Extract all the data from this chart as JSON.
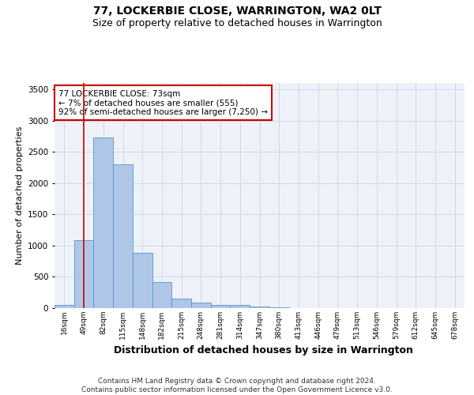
{
  "title": "77, LOCKERBIE CLOSE, WARRINGTON, WA2 0LT",
  "subtitle": "Size of property relative to detached houses in Warrington",
  "xlabel": "Distribution of detached houses by size in Warrington",
  "ylabel": "Number of detached properties",
  "categories": [
    "16sqm",
    "49sqm",
    "82sqm",
    "115sqm",
    "148sqm",
    "182sqm",
    "215sqm",
    "248sqm",
    "281sqm",
    "314sqm",
    "347sqm",
    "380sqm",
    "413sqm",
    "446sqm",
    "479sqm",
    "513sqm",
    "546sqm",
    "579sqm",
    "612sqm",
    "645sqm",
    "678sqm"
  ],
  "values": [
    55,
    1090,
    2730,
    2300,
    880,
    420,
    155,
    90,
    55,
    45,
    30,
    10,
    5,
    2,
    1,
    0,
    0,
    0,
    0,
    0,
    0
  ],
  "bar_color": "#aec6e8",
  "bar_edge_color": "#5a96c8",
  "grid_color": "#d0d8e8",
  "background_color": "#eef2f8",
  "vline_x": 1,
  "vline_color": "#cc0000",
  "annotation_text": "77 LOCKERBIE CLOSE: 73sqm\n← 7% of detached houses are smaller (555)\n92% of semi-detached houses are larger (7,250) →",
  "annotation_box_color": "#ffffff",
  "annotation_box_edge": "#cc0000",
  "ylim": [
    0,
    3600
  ],
  "yticks": [
    0,
    500,
    1000,
    1500,
    2000,
    2500,
    3000,
    3500
  ],
  "footer": "Contains HM Land Registry data © Crown copyright and database right 2024.\nContains public sector information licensed under the Open Government Licence v3.0.",
  "title_fontsize": 10,
  "subtitle_fontsize": 9,
  "ylabel_fontsize": 8,
  "xlabel_fontsize": 9,
  "annotation_fontsize": 7.5,
  "footer_fontsize": 6.5,
  "tick_fontsize": 7.5,
  "xtick_fontsize": 6.5
}
